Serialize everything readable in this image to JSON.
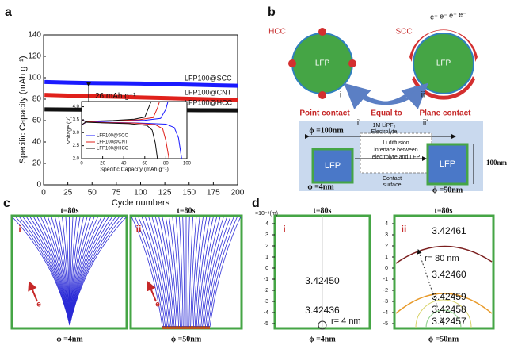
{
  "panel_labels": [
    "a",
    "b",
    "c",
    "d"
  ],
  "chart_data": [
    {
      "type": "line",
      "x_label": "Cycle numbers",
      "y_label": "Specific Capacity (mAh g⁻¹)",
      "xlim": [
        0,
        200
      ],
      "xticks": [
        0,
        25,
        50,
        75,
        100,
        125,
        150,
        175,
        200
      ],
      "ylim": [
        0,
        140
      ],
      "yticks": [
        0,
        20,
        40,
        60,
        80,
        100,
        120,
        140
      ],
      "x": [
        1,
        25,
        50,
        75,
        100,
        125,
        150,
        175,
        200
      ],
      "annotations": [
        "26 mAh g⁻¹"
      ],
      "series": [
        {
          "name": "LFP100@SCC",
          "color": "#1a1aff",
          "values": [
            96,
            95.5,
            95,
            94.8,
            94.5,
            94,
            93.5,
            93,
            92.5
          ]
        },
        {
          "name": "LFP100@CNT",
          "color": "#e0201b",
          "values": [
            84,
            83.3,
            82.8,
            82.2,
            81.6,
            81,
            80.4,
            79.8,
            79.2
          ]
        },
        {
          "name": "LFP100@HCC",
          "color": "#111111",
          "values": [
            70.5,
            70.3,
            70.1,
            70,
            69.9,
            69.8,
            69.7,
            69.6,
            69.5
          ]
        }
      ]
    },
    {
      "type": "line",
      "x_label": "Specific Capacity (mAh g⁻¹)",
      "y_label": "Voltage (V)",
      "xlim": [
        0,
        100
      ],
      "xticks": [
        0,
        20,
        40,
        60,
        80,
        100
      ],
      "ylim": [
        2.0,
        4.2
      ],
      "yticks": [
        {
          "value": 2.0,
          "label": "2.0"
        },
        {
          "value": 2.5,
          "label": "2.5"
        },
        {
          "value": 3.0,
          "label": "3.0"
        },
        {
          "value": 3.5,
          "label": "3.5"
        },
        {
          "value": 4.0,
          "label": "4.0"
        }
      ],
      "series": [
        {
          "name": "LFP100@SCC",
          "color": "#1a1aff",
          "x": [
            0,
            5,
            20,
            50,
            80,
            88,
            92,
            95
          ],
          "values": [
            3.5,
            3.42,
            3.4,
            3.38,
            3.33,
            3.2,
            2.8,
            2.0
          ],
          "charge": {
            "x": [
              0,
              5,
              30,
              60,
              75,
              80,
              82
            ],
            "values": [
              3.3,
              3.42,
              3.45,
              3.48,
              3.55,
              3.9,
              4.2
            ]
          }
        },
        {
          "name": "LFP100@CNT",
          "color": "#e0201b",
          "x": [
            0,
            5,
            20,
            50,
            70,
            77,
            80,
            83
          ],
          "values": [
            3.5,
            3.41,
            3.39,
            3.37,
            3.31,
            3.15,
            2.7,
            2.0
          ],
          "charge": {
            "x": [
              0,
              5,
              30,
              55,
              68,
              72,
              74
            ],
            "values": [
              3.3,
              3.43,
              3.46,
              3.5,
              3.58,
              3.95,
              4.2
            ]
          }
        },
        {
          "name": "LFP100@HCC",
          "color": "#111111",
          "x": [
            0,
            5,
            20,
            45,
            62,
            67,
            70,
            72
          ],
          "values": [
            3.5,
            3.4,
            3.38,
            3.35,
            3.28,
            3.1,
            2.6,
            2.0
          ],
          "charge": {
            "x": [
              0,
              5,
              30,
              50,
              60,
              64,
              66
            ],
            "values": [
              3.3,
              3.44,
              3.47,
              3.52,
              3.6,
              4.0,
              4.2
            ]
          }
        }
      ]
    }
  ],
  "b": {
    "hcc": "HCC",
    "scc": "SCC",
    "lfp": [
      "LFP",
      "LFP",
      "LFP",
      "LFP"
    ],
    "electrons": [
      "e⁻",
      "e⁻",
      "e⁻",
      "e⁻"
    ],
    "point_contact": "Point contact",
    "plane_contact": "Plane contact",
    "i": "i",
    "ii": "ii",
    "equal_to": "Equal to",
    "i_prime": "i'",
    "ii_prime": "ii'",
    "electrolyte": [
      "1M LiPF₆",
      "Electrolyte"
    ],
    "interface": [
      "Li diffusion",
      "interface between",
      "electrolyte and LFP"
    ],
    "contact": [
      "Contact",
      "surface"
    ],
    "phi_100": "ϕ =100nm",
    "phi_4": "ϕ =4nm",
    "phi_50": "ϕ =50nm",
    "size": "100nm"
  },
  "c": {
    "times": [
      "t=80s",
      "t=80s"
    ],
    "sub": [
      "i",
      "ii"
    ],
    "electron": [
      "e",
      "e"
    ],
    "phis": [
      "ϕ =4nm",
      "ϕ =50nm"
    ]
  },
  "d": {
    "unit": "×10⁻⁸(m)",
    "yticks": [
      4,
      3,
      2,
      1,
      0,
      -1,
      -2,
      -3,
      -4,
      -5
    ],
    "times": [
      "t=80s",
      "t=80s"
    ],
    "sub": [
      "i",
      "ii"
    ],
    "i_values": [
      "3.42450",
      "3.42436"
    ],
    "i_radius": "r= 4 nm",
    "ii_values": [
      "3.42461",
      "3.42460",
      "3.42459",
      "3.42458",
      "3.42457"
    ],
    "ii_radius": "r= 80 nm",
    "phis": [
      "ϕ =4nm",
      "ϕ =50nm"
    ]
  }
}
